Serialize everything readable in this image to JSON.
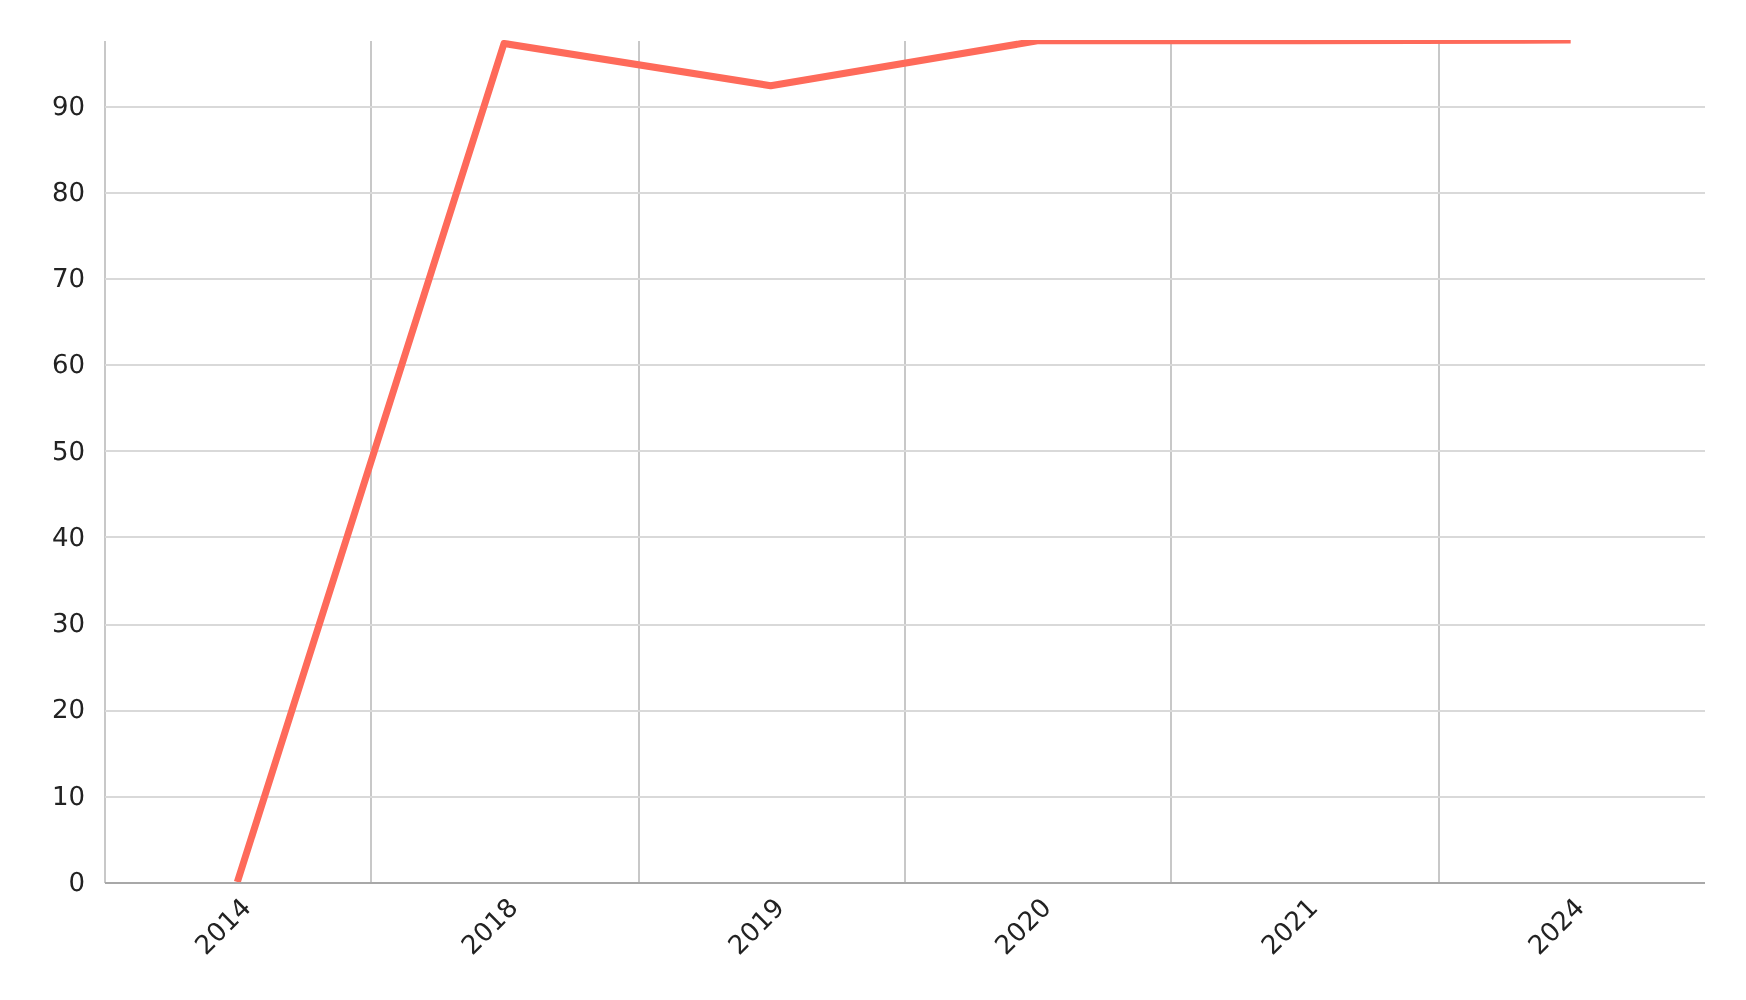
{
  "chart_data": {
    "type": "line",
    "categories": [
      "2014",
      "2018",
      "2019",
      "2020",
      "2021",
      "2024"
    ],
    "series": [
      {
        "color": "#fe6a5a",
        "values": [
          0,
          97.2,
          92.3,
          97.5,
          97.5,
          97.6
        ]
      }
    ],
    "ylim": [
      0,
      97.6
    ],
    "yticks": [
      0,
      10,
      20,
      30,
      40,
      50,
      60,
      70,
      80,
      90
    ],
    "grid": true
  }
}
